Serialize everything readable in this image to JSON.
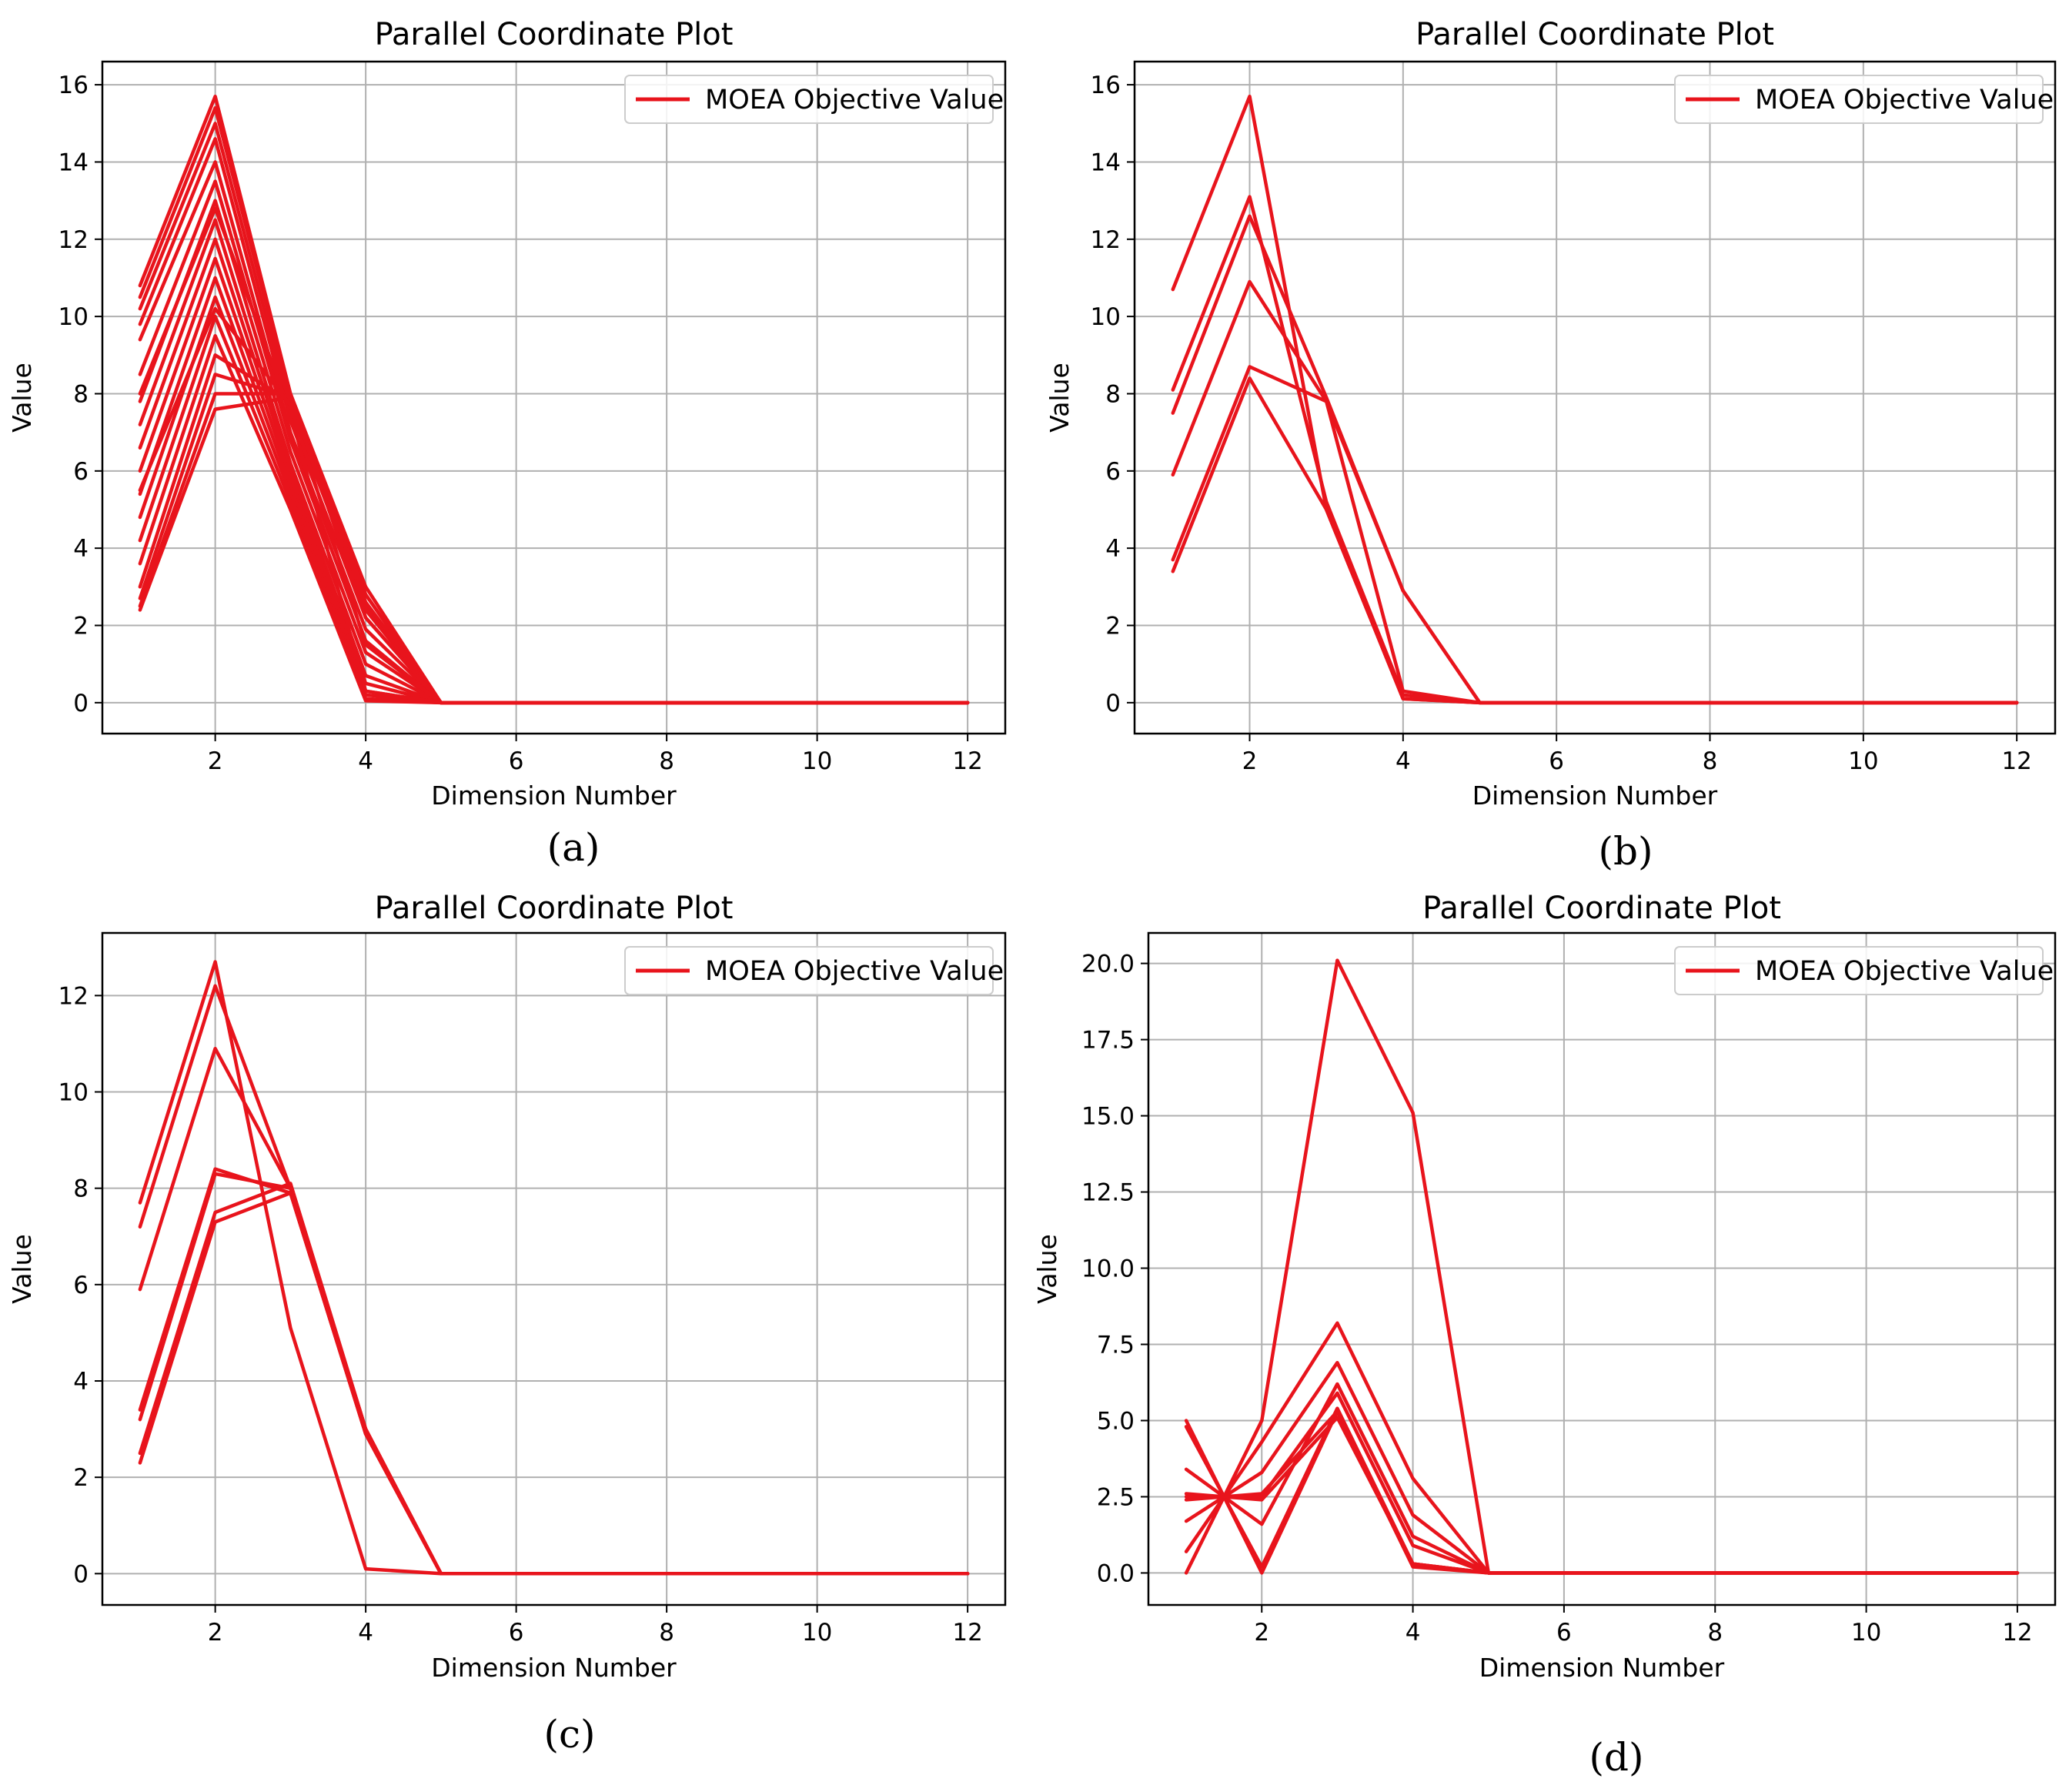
{
  "colors": {
    "series": "#e8141c",
    "grid": "#b0b0b0",
    "background": "#ffffff"
  },
  "chart_data": [
    {
      "id": "a",
      "type": "line",
      "title": "Parallel Coordinate Plot",
      "xlabel": "Dimension Number",
      "ylabel": "Value",
      "caption": "(a)",
      "legend": {
        "label": "MOEA Objective Value",
        "position": "top-right"
      },
      "xlim": [
        0.5,
        12.5
      ],
      "ylim": [
        -0.8,
        16.6
      ],
      "xticks": [
        2,
        4,
        6,
        8,
        10,
        12
      ],
      "yticks": [
        0,
        2,
        4,
        6,
        8,
        10,
        12,
        14,
        16
      ],
      "ytick_labels": [
        "0",
        "2",
        "4",
        "6",
        "8",
        "10",
        "12",
        "14",
        "16"
      ],
      "x": [
        1,
        2,
        3,
        4,
        5,
        6,
        7,
        8,
        9,
        10,
        11,
        12
      ],
      "series": [
        {
          "name": "MOEA Objective Value",
          "values": [
            10.8,
            15.7,
            8.0,
            3.0,
            0,
            0,
            0,
            0,
            0,
            0,
            0,
            0
          ]
        },
        {
          "name": "MOEA Objective Value",
          "values": [
            10.5,
            15.4,
            7.9,
            2.8,
            0,
            0,
            0,
            0,
            0,
            0,
            0,
            0
          ]
        },
        {
          "name": "MOEA Objective Value",
          "values": [
            10.2,
            15.0,
            7.6,
            2.5,
            0,
            0,
            0,
            0,
            0,
            0,
            0,
            0
          ]
        },
        {
          "name": "MOEA Objective Value",
          "values": [
            9.8,
            14.6,
            7.3,
            2.2,
            0,
            0,
            0,
            0,
            0,
            0,
            0,
            0
          ]
        },
        {
          "name": "MOEA Objective Value",
          "values": [
            9.4,
            14.0,
            7.0,
            1.9,
            0,
            0,
            0,
            0,
            0,
            0,
            0,
            0
          ]
        },
        {
          "name": "MOEA Objective Value",
          "values": [
            8.5,
            13.5,
            6.8,
            1.6,
            0,
            0,
            0,
            0,
            0,
            0,
            0,
            0
          ]
        },
        {
          "name": "MOEA Objective Value",
          "values": [
            7.8,
            13.0,
            6.5,
            1.3,
            0,
            0,
            0,
            0,
            0,
            0,
            0,
            0
          ]
        },
        {
          "name": "MOEA Objective Value",
          "values": [
            7.2,
            12.5,
            6.2,
            1.0,
            0,
            0,
            0,
            0,
            0,
            0,
            0,
            0
          ]
        },
        {
          "name": "MOEA Objective Value",
          "values": [
            6.6,
            12.0,
            6.0,
            0.7,
            0,
            0,
            0,
            0,
            0,
            0,
            0,
            0
          ]
        },
        {
          "name": "MOEA Objective Value",
          "values": [
            6.0,
            11.5,
            5.8,
            0.5,
            0,
            0,
            0,
            0,
            0,
            0,
            0,
            0
          ]
        },
        {
          "name": "MOEA Objective Value",
          "values": [
            5.4,
            11.0,
            5.6,
            0.3,
            0,
            0,
            0,
            0,
            0,
            0,
            0,
            0
          ]
        },
        {
          "name": "MOEA Objective Value",
          "values": [
            4.8,
            10.5,
            5.4,
            0.2,
            0,
            0,
            0,
            0,
            0,
            0,
            0,
            0
          ]
        },
        {
          "name": "MOEA Objective Value",
          "values": [
            4.2,
            10.0,
            5.2,
            0.1,
            0,
            0,
            0,
            0,
            0,
            0,
            0,
            0
          ]
        },
        {
          "name": "MOEA Objective Value",
          "values": [
            3.6,
            9.5,
            5.0,
            0.05,
            0,
            0,
            0,
            0,
            0,
            0,
            0,
            0
          ]
        },
        {
          "name": "MOEA Objective Value",
          "values": [
            3.0,
            9.0,
            7.8,
            2.8,
            0,
            0,
            0,
            0,
            0,
            0,
            0,
            0
          ]
        },
        {
          "name": "MOEA Objective Value",
          "values": [
            2.7,
            8.5,
            7.9,
            2.6,
            0,
            0,
            0,
            0,
            0,
            0,
            0,
            0
          ]
        },
        {
          "name": "MOEA Objective Value",
          "values": [
            2.5,
            8.0,
            8.0,
            2.4,
            0,
            0,
            0,
            0,
            0,
            0,
            0,
            0
          ]
        },
        {
          "name": "MOEA Objective Value",
          "values": [
            2.4,
            7.6,
            7.9,
            2.2,
            0,
            0,
            0,
            0,
            0,
            0,
            0,
            0
          ]
        },
        {
          "name": "MOEA Objective Value",
          "values": [
            8.0,
            12.8,
            7.5,
            0.3,
            0,
            0,
            0,
            0,
            0,
            0,
            0,
            0
          ]
        },
        {
          "name": "MOEA Objective Value",
          "values": [
            5.5,
            10.2,
            7.7,
            1.5,
            0,
            0,
            0,
            0,
            0,
            0,
            0,
            0
          ]
        }
      ]
    },
    {
      "id": "b",
      "type": "line",
      "title": "Parallel Coordinate Plot",
      "xlabel": "Dimension Number",
      "ylabel": "Value",
      "caption": "(b)",
      "legend": {
        "label": "MOEA Objective Value",
        "position": "top-right"
      },
      "xlim": [
        0.5,
        12.5
      ],
      "ylim": [
        -0.8,
        16.6
      ],
      "xticks": [
        2,
        4,
        6,
        8,
        10,
        12
      ],
      "yticks": [
        0,
        2,
        4,
        6,
        8,
        10,
        12,
        14,
        16
      ],
      "ytick_labels": [
        "0",
        "2",
        "4",
        "6",
        "8",
        "10",
        "12",
        "14",
        "16"
      ],
      "x": [
        1,
        2,
        3,
        4,
        5,
        6,
        7,
        8,
        9,
        10,
        11,
        12
      ],
      "series": [
        {
          "name": "MOEA Objective Value",
          "values": [
            10.7,
            15.7,
            5.0,
            0.1,
            0,
            0,
            0,
            0,
            0,
            0,
            0,
            0
          ]
        },
        {
          "name": "MOEA Objective Value",
          "values": [
            8.1,
            13.1,
            5.2,
            0.2,
            0,
            0,
            0,
            0,
            0,
            0,
            0,
            0
          ]
        },
        {
          "name": "MOEA Objective Value",
          "values": [
            7.5,
            12.6,
            7.9,
            2.9,
            0,
            0,
            0,
            0,
            0,
            0,
            0,
            0
          ]
        },
        {
          "name": "MOEA Objective Value",
          "values": [
            5.9,
            10.9,
            7.8,
            2.9,
            0,
            0,
            0,
            0,
            0,
            0,
            0,
            0
          ]
        },
        {
          "name": "MOEA Objective Value",
          "values": [
            3.7,
            8.7,
            7.8,
            0.3,
            0,
            0,
            0,
            0,
            0,
            0,
            0,
            0
          ]
        },
        {
          "name": "MOEA Objective Value",
          "values": [
            3.4,
            8.4,
            5.0,
            0.1,
            0,
            0,
            0,
            0,
            0,
            0,
            0,
            0
          ]
        }
      ]
    },
    {
      "id": "c",
      "type": "line",
      "title": "Parallel Coordinate Plot",
      "xlabel": "Dimension Number",
      "ylabel": "Value",
      "caption": "(c)",
      "legend": {
        "label": "MOEA Objective Value",
        "position": "top-right"
      },
      "xlim": [
        0.5,
        12.5
      ],
      "ylim": [
        -0.65,
        13.3
      ],
      "xticks": [
        2,
        4,
        6,
        8,
        10,
        12
      ],
      "yticks": [
        0,
        2,
        4,
        6,
        8,
        10,
        12
      ],
      "ytick_labels": [
        "0",
        "2",
        "4",
        "6",
        "8",
        "10",
        "12"
      ],
      "x": [
        1,
        2,
        3,
        4,
        5,
        6,
        7,
        8,
        9,
        10,
        11,
        12
      ],
      "series": [
        {
          "name": "MOEA Objective Value",
          "values": [
            7.7,
            12.7,
            5.1,
            0.1,
            0,
            0,
            0,
            0,
            0,
            0,
            0,
            0
          ]
        },
        {
          "name": "MOEA Objective Value",
          "values": [
            7.2,
            12.2,
            8.0,
            3.0,
            0,
            0,
            0,
            0,
            0,
            0,
            0,
            0
          ]
        },
        {
          "name": "MOEA Objective Value",
          "values": [
            5.9,
            10.9,
            8.0,
            2.9,
            0,
            0,
            0,
            0,
            0,
            0,
            0,
            0
          ]
        },
        {
          "name": "MOEA Objective Value",
          "values": [
            3.4,
            8.4,
            7.9,
            2.9,
            0,
            0,
            0,
            0,
            0,
            0,
            0,
            0
          ]
        },
        {
          "name": "MOEA Objective Value",
          "values": [
            3.2,
            8.3,
            8.0,
            3.0,
            0,
            0,
            0,
            0,
            0,
            0,
            0,
            0
          ]
        },
        {
          "name": "MOEA Objective Value",
          "values": [
            2.5,
            7.5,
            8.1,
            3.0,
            0,
            0,
            0,
            0,
            0,
            0,
            0,
            0
          ]
        },
        {
          "name": "MOEA Objective Value",
          "values": [
            2.3,
            7.3,
            7.9,
            2.9,
            0,
            0,
            0,
            0,
            0,
            0,
            0,
            0
          ]
        }
      ]
    },
    {
      "id": "d",
      "type": "line",
      "title": "Parallel Coordinate Plot",
      "xlabel": "Dimension Number",
      "ylabel": "Value",
      "caption": "(d)",
      "legend": {
        "label": "MOEA Objective Value",
        "position": "top-right"
      },
      "xlim": [
        0.5,
        12.5
      ],
      "ylim": [
        -1.05,
        21.0
      ],
      "xticks": [
        2,
        4,
        6,
        8,
        10,
        12
      ],
      "yticks": [
        0,
        2.5,
        5,
        7.5,
        10,
        12.5,
        15,
        17.5,
        20
      ],
      "ytick_labels": [
        "0.0",
        "2.5",
        "5.0",
        "7.5",
        "10.0",
        "12.5",
        "15.0",
        "17.5",
        "20.0"
      ],
      "x": [
        1,
        2,
        3,
        4,
        5,
        6,
        7,
        8,
        9,
        10,
        11,
        12
      ],
      "series": [
        {
          "name": "MOEA Objective Value",
          "values": [
            0.0,
            5.0,
            20.1,
            15.1,
            0,
            0,
            0,
            0,
            0,
            0,
            0,
            0
          ]
        },
        {
          "name": "MOEA Objective Value",
          "values": [
            5.0,
            0.0,
            5.3,
            0.2,
            0,
            0,
            0,
            0,
            0,
            0,
            0,
            0
          ]
        },
        {
          "name": "MOEA Objective Value",
          "values": [
            4.8,
            0.2,
            5.4,
            0.3,
            0,
            0,
            0,
            0,
            0,
            0,
            0,
            0
          ]
        },
        {
          "name": "MOEA Objective Value",
          "values": [
            0.7,
            4.3,
            8.2,
            3.1,
            0,
            0,
            0,
            0,
            0,
            0,
            0,
            0
          ]
        },
        {
          "name": "MOEA Objective Value",
          "values": [
            1.7,
            3.3,
            6.9,
            1.9,
            0,
            0,
            0,
            0,
            0,
            0,
            0,
            0
          ]
        },
        {
          "name": "MOEA Objective Value",
          "values": [
            3.4,
            1.6,
            6.2,
            1.2,
            0,
            0,
            0,
            0,
            0,
            0,
            0,
            0
          ]
        },
        {
          "name": "MOEA Objective Value",
          "values": [
            2.5,
            2.5,
            5.9,
            0.9,
            0,
            0,
            0,
            0,
            0,
            0,
            0,
            0
          ]
        },
        {
          "name": "MOEA Objective Value",
          "values": [
            2.6,
            2.4,
            5.1,
            0.3,
            0,
            0,
            0,
            0,
            0,
            0,
            0,
            0
          ]
        },
        {
          "name": "MOEA Objective Value",
          "values": [
            2.4,
            2.6,
            5.3,
            0.3,
            0,
            0,
            0,
            0,
            0,
            0,
            0,
            0
          ]
        }
      ]
    }
  ]
}
